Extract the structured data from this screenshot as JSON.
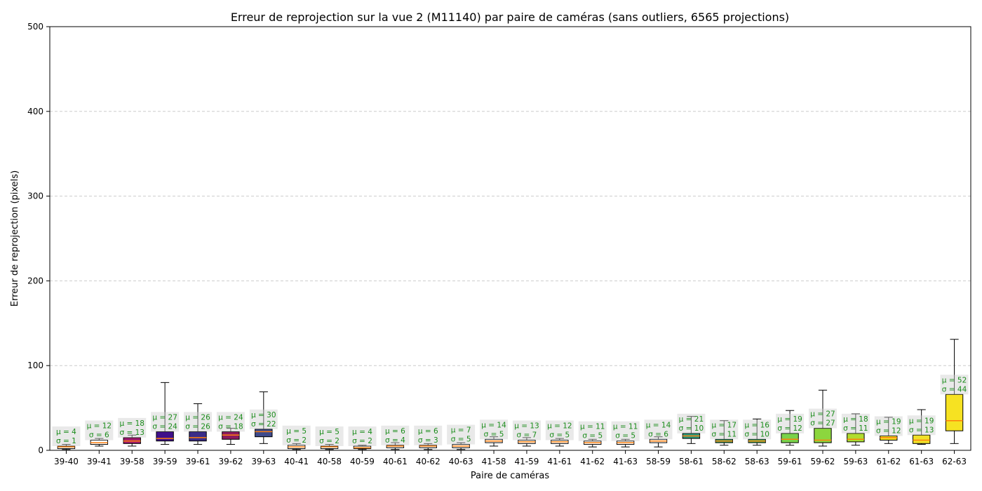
{
  "chart_data": {
    "type": "box",
    "title": "Erreur de reprojection sur la vue 2 (M11140) par paire de caméras (sans outliers, 6565 projections)",
    "xlabel": "Paire de caméras",
    "ylabel": "Erreur de reprojection (pixels)",
    "ylim": [
      0,
      500
    ],
    "yticks": [
      0,
      100,
      200,
      300,
      400,
      500
    ],
    "grid": "horizontal-dashed",
    "categories": [
      "39-40",
      "39-41",
      "39-58",
      "39-59",
      "39-61",
      "39-62",
      "39-63",
      "40-41",
      "40-58",
      "40-59",
      "40-61",
      "40-62",
      "40-63",
      "41-58",
      "41-59",
      "41-61",
      "41-62",
      "41-63",
      "58-59",
      "58-61",
      "58-62",
      "58-63",
      "59-61",
      "59-62",
      "59-63",
      "61-62",
      "61-63",
      "62-63"
    ],
    "boxes": [
      {
        "whislo": 1,
        "q1": 2,
        "med": 4,
        "q3": 5,
        "whishi": 7,
        "color": "#ffffff"
      },
      {
        "whislo": 5,
        "q1": 7,
        "med": 9,
        "q3": 12,
        "whishi": 14,
        "color": "#ffffff"
      },
      {
        "whislo": 5,
        "q1": 8,
        "med": 11,
        "q3": 15,
        "whishi": 18,
        "color": "#a01a6a"
      },
      {
        "whislo": 7,
        "q1": 11,
        "med": 14,
        "q3": 22,
        "whishi": 80,
        "color": "#40108a"
      },
      {
        "whislo": 7,
        "q1": 11,
        "med": 15,
        "q3": 22,
        "whishi": 55,
        "color": "#3a2c88"
      },
      {
        "whislo": 7,
        "q1": 13,
        "med": 18,
        "q3": 22,
        "whishi": 26,
        "color": "#8b1a5e"
      },
      {
        "whislo": 8,
        "q1": 16,
        "med": 22,
        "q3": 25,
        "whishi": 69,
        "color": "#3e4a8c"
      },
      {
        "whislo": 1,
        "q1": 2,
        "med": 4,
        "q3": 6,
        "whishi": 8,
        "color": "#ffffff"
      },
      {
        "whislo": 1,
        "q1": 2,
        "med": 4,
        "q3": 5,
        "whishi": 7,
        "color": "#ffffff"
      },
      {
        "whislo": 1,
        "q1": 2,
        "med": 3,
        "q3": 5,
        "whishi": 6,
        "color": "#ffffff"
      },
      {
        "whislo": 1,
        "q1": 3,
        "med": 5,
        "q3": 6,
        "whishi": 9,
        "color": "#ffffff"
      },
      {
        "whislo": 1,
        "q1": 3,
        "med": 5,
        "q3": 6,
        "whishi": 8,
        "color": "#ffffff"
      },
      {
        "whislo": 1,
        "q1": 3,
        "med": 5,
        "q3": 7,
        "whishi": 9,
        "color": "#ffffff"
      },
      {
        "whislo": 5,
        "q1": 9,
        "med": 11,
        "q3": 13,
        "whishi": 16,
        "color": "#ffffff"
      },
      {
        "whislo": 5,
        "q1": 8,
        "med": 10,
        "q3": 12,
        "whishi": 15,
        "color": "#ffffff"
      },
      {
        "whislo": 5,
        "q1": 8,
        "med": 10,
        "q3": 12,
        "whishi": 14,
        "color": "#ffffff"
      },
      {
        "whislo": 4,
        "q1": 7,
        "med": 9,
        "q3": 11,
        "whishi": 13,
        "color": "#ffffff"
      },
      {
        "whislo": 4,
        "q1": 7,
        "med": 9,
        "q3": 11,
        "whishi": 13,
        "color": "#ffffff"
      },
      {
        "whislo": 4,
        "q1": 9,
        "med": 11,
        "q3": 13,
        "whishi": 16,
        "color": "#ffffff"
      },
      {
        "whislo": 8,
        "q1": 14,
        "med": 17,
        "q3": 20,
        "whishi": 40,
        "color": "#2a9a7a"
      },
      {
        "whislo": 6,
        "q1": 9,
        "med": 11,
        "q3": 13,
        "whishi": 35,
        "color": "#3aaa60"
      },
      {
        "whislo": 6,
        "q1": 9,
        "med": 11,
        "q3": 13,
        "whishi": 37,
        "color": "#4ab85a"
      },
      {
        "whislo": 6,
        "q1": 9,
        "med": 13,
        "q3": 20,
        "whishi": 47,
        "color": "#7ad24a"
      },
      {
        "whislo": 5,
        "q1": 9,
        "med": 12,
        "q3": 26,
        "whishi": 71,
        "color": "#8cd63e"
      },
      {
        "whislo": 6,
        "q1": 10,
        "med": 13,
        "q3": 20,
        "whishi": 43,
        "color": "#b0dc30"
      },
      {
        "whislo": 8,
        "q1": 12,
        "med": 15,
        "q3": 17,
        "whishi": 39,
        "color": "#f2e020"
      },
      {
        "whislo": 7,
        "q1": 8,
        "med": 12,
        "q3": 18,
        "whishi": 48,
        "color": "#f0e028"
      },
      {
        "whislo": 8,
        "q1": 23,
        "med": 35,
        "q3": 66,
        "whishi": 131,
        "color": "#f6e222"
      }
    ],
    "annotations": [
      {
        "mu": "μ = 4",
        "sigma": "σ = 1"
      },
      {
        "mu": "μ = 12",
        "sigma": "σ = 6"
      },
      {
        "mu": "μ = 18",
        "sigma": "σ = 13"
      },
      {
        "mu": "μ = 27",
        "sigma": "σ = 24"
      },
      {
        "mu": "μ = 26",
        "sigma": "σ = 26"
      },
      {
        "mu": "μ = 24",
        "sigma": "σ = 18"
      },
      {
        "mu": "μ = 30",
        "sigma": "σ = 22"
      },
      {
        "mu": "μ = 5",
        "sigma": "σ = 2"
      },
      {
        "mu": "μ = 5",
        "sigma": "σ = 2"
      },
      {
        "mu": "μ = 4",
        "sigma": "σ = 2"
      },
      {
        "mu": "μ = 6",
        "sigma": "σ = 4"
      },
      {
        "mu": "μ = 6",
        "sigma": "σ = 3"
      },
      {
        "mu": "μ = 7",
        "sigma": "σ = 5"
      },
      {
        "mu": "μ = 14",
        "sigma": "σ = 5"
      },
      {
        "mu": "μ = 13",
        "sigma": "σ = 7"
      },
      {
        "mu": "μ = 12",
        "sigma": "σ = 5"
      },
      {
        "mu": "μ = 11",
        "sigma": "σ = 5"
      },
      {
        "mu": "μ = 11",
        "sigma": "σ = 5"
      },
      {
        "mu": "μ = 14",
        "sigma": "σ = 6"
      },
      {
        "mu": "μ = 21",
        "sigma": "σ = 10"
      },
      {
        "mu": "μ = 17",
        "sigma": "σ = 11"
      },
      {
        "mu": "μ = 16",
        "sigma": "σ = 10"
      },
      {
        "mu": "μ = 19",
        "sigma": "σ = 12"
      },
      {
        "mu": "μ = 27",
        "sigma": "σ = 27"
      },
      {
        "mu": "μ = 18",
        "sigma": "σ = 11"
      },
      {
        "mu": "μ = 19",
        "sigma": "σ = 12"
      },
      {
        "mu": "μ = 19",
        "sigma": "σ = 13"
      },
      {
        "mu": "μ = 52",
        "sigma": "σ = 44"
      }
    ]
  }
}
